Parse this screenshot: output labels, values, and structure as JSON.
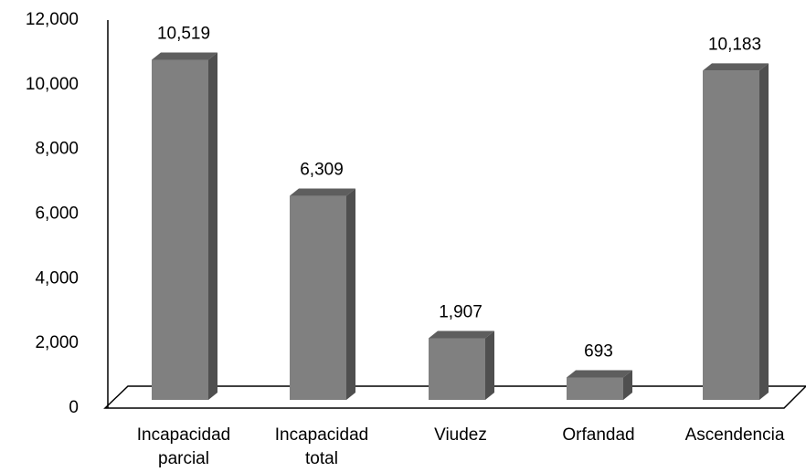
{
  "chart_data": {
    "type": "bar3d",
    "categories": [
      "Incapacidad parcial",
      "Incapacidad total",
      "Viudez",
      "Orfandad",
      "Ascendencia"
    ],
    "values": [
      10519,
      6309,
      1907,
      693,
      10183
    ],
    "value_labels": [
      "10,519",
      "6,309",
      "1,907",
      "693",
      "10,183"
    ],
    "color": "#808080",
    "ylim": [
      0,
      12000
    ],
    "yticks": [
      0,
      {
        "value": 2000,
        "label": "2,000"
      },
      {
        "value": 4000,
        "label": "4,000"
      },
      {
        "value": 6000,
        "label": "6,000"
      },
      {
        "value": 8000,
        "label": "8,000"
      },
      {
        "value": 10000,
        "label": "10,000"
      },
      {
        "value": 12000,
        "label": "12,000"
      }
    ]
  }
}
